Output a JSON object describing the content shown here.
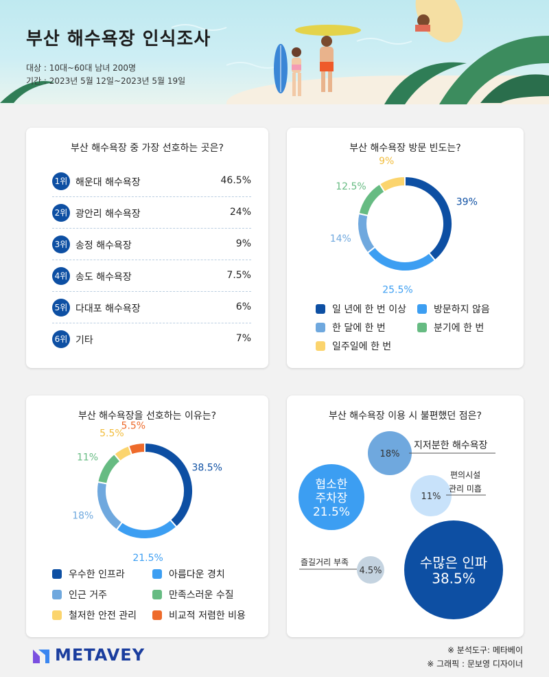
{
  "header": {
    "title": "부산 해수욕장 인식조사",
    "target": "대상 : 10대~60대 남녀 200명",
    "period": "기간 : 2023년 5월 12일~2023년 5월 19일"
  },
  "colors": {
    "dark_blue": "#0d4fa3",
    "bright_blue": "#3c9ef2",
    "light_blue": "#6fa8de",
    "green": "#66bb82",
    "yellow": "#fbd46d",
    "orange": "#ee6a2a",
    "navy_badge": "#0d4fa3"
  },
  "footer": {
    "logo": "METAVEY",
    "analysis_tool": "※ 분석도구: 메타베이",
    "graphic_credit": "※ 그래픽 : 문보영 디자이너"
  },
  "chart_data": [
    {
      "type": "table",
      "title": "부산 해수욕장 중 가장 선호하는 곳은?",
      "rows": [
        {
          "rank": "1위",
          "name": "해운대 해수욕장",
          "value": "46.5%"
        },
        {
          "rank": "2위",
          "name": "광안리 해수욕장",
          "value": "24%"
        },
        {
          "rank": "3위",
          "name": "송정 해수욕장",
          "value": "9%"
        },
        {
          "rank": "4위",
          "name": "송도 해수욕장",
          "value": "7.5%"
        },
        {
          "rank": "5위",
          "name": "다대포 해수욕장",
          "value": "6%"
        },
        {
          "rank": "6위",
          "name": "기타",
          "value": "7%"
        }
      ]
    },
    {
      "type": "pie",
      "title": "부산 해수욕장 방문 빈도는?",
      "donut": true,
      "slices": [
        {
          "name": "일 년에 한 번 이상",
          "value": 39,
          "label": "39%",
          "color": "#0d4fa3"
        },
        {
          "name": "방문하지 않음",
          "value": 25.5,
          "label": "25.5%",
          "color": "#3c9ef2"
        },
        {
          "name": "한 달에 한 번",
          "value": 14,
          "label": "14%",
          "color": "#6fa8de"
        },
        {
          "name": "분기에 한 번",
          "value": 12.5,
          "label": "12.5%",
          "color": "#66bb82"
        },
        {
          "name": "일주일에 한 번",
          "value": 9,
          "label": "9%",
          "color": "#fbd46d"
        }
      ],
      "legend": [
        "일 년에 한 번 이상",
        "방문하지 않음",
        "한 달에 한 번",
        "분기에 한 번",
        "일주일에 한 번"
      ]
    },
    {
      "type": "pie",
      "title": "부산 해수욕장을 선호하는 이유는?",
      "donut": true,
      "slices": [
        {
          "name": "우수한 인프라",
          "value": 38.5,
          "label": "38.5%",
          "color": "#0d4fa3"
        },
        {
          "name": "아름다운 경치",
          "value": 21.5,
          "label": "21.5%",
          "color": "#3c9ef2"
        },
        {
          "name": "인근 거주",
          "value": 18,
          "label": "18%",
          "color": "#6fa8de"
        },
        {
          "name": "만족스러운 수질",
          "value": 11,
          "label": "11%",
          "color": "#66bb82"
        },
        {
          "name": "철저한 안전 관리",
          "value": 5.5,
          "label": "5.5%",
          "color": "#fbd46d"
        },
        {
          "name": "비교적 저렴한 비용",
          "value": 5.5,
          "label": "5.5%",
          "color": "#ee6a2a"
        }
      ],
      "legend": [
        "우수한 인프라",
        "아름다운 경치",
        "인근 거주",
        "만족스러운 수질",
        "철저한 안전 관리",
        "비교적 저렴한 비용"
      ]
    },
    {
      "type": "scatter",
      "title": "부산 해수욕장 이용 시 불편했던 점은?",
      "bubbles": [
        {
          "name": "수많은 인파",
          "value": 38.5,
          "label": "38.5%",
          "color": "#0d4fa3"
        },
        {
          "name": "협소한 주차장",
          "value": 21.5,
          "label": "21.5%",
          "color": "#3c9ef2"
        },
        {
          "name": "지저분한 해수욕장",
          "value": 18,
          "label": "18%",
          "color": "#6fa8de"
        },
        {
          "name": "편의시설 관리 미흡",
          "value": 11,
          "label": "11%",
          "color": "#c8e2fa"
        },
        {
          "name": "즐길거리 부족",
          "value": 4.5,
          "label": "4.5%",
          "color": "#c4d3e0"
        }
      ]
    }
  ]
}
